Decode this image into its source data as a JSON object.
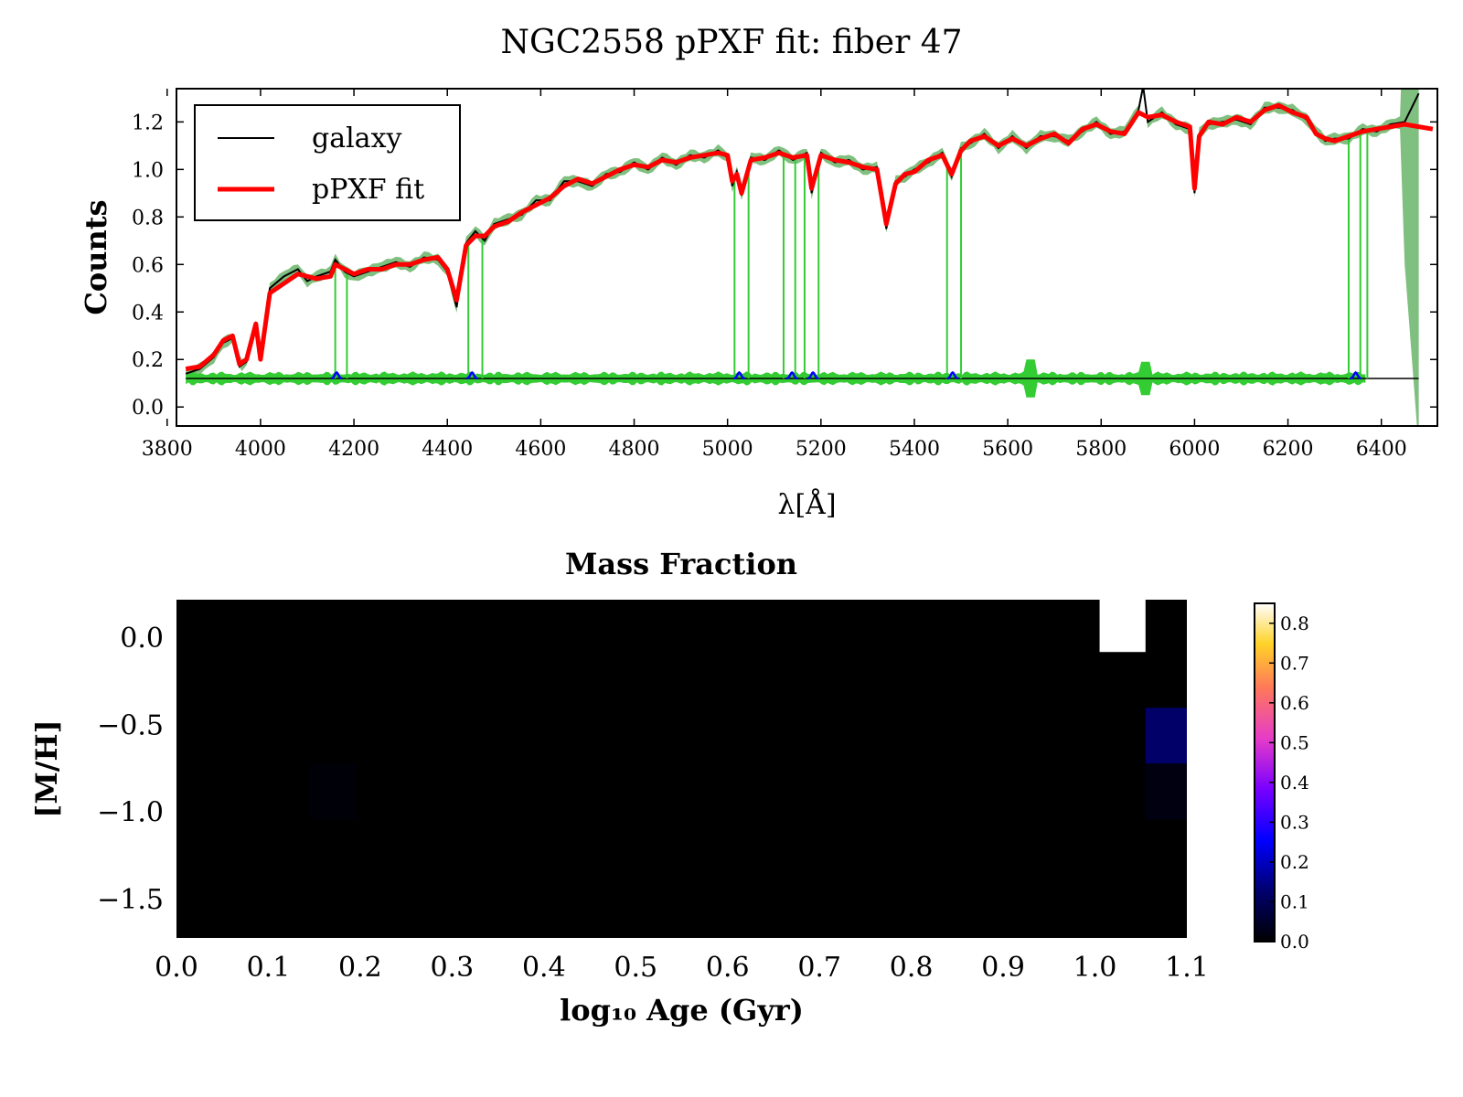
{
  "figure": {
    "title": "NGC2558 pPXF fit: fiber 47"
  },
  "chart_data": [
    {
      "type": "line",
      "xlabel": "λ[Å]",
      "ylabel": "Counts",
      "xlim": [
        3820,
        6520
      ],
      "ylim": [
        -0.08,
        1.34
      ],
      "xticks": [
        3800,
        4000,
        4200,
        4400,
        4600,
        4800,
        5000,
        5200,
        5400,
        5600,
        5800,
        6000,
        6200,
        6400
      ],
      "yticks": [
        0.0,
        0.2,
        0.4,
        0.6,
        0.8,
        1.0,
        1.2
      ],
      "ytick_labels": [
        "0.0",
        "0.2",
        "0.4",
        "0.6",
        "0.8",
        "1.0",
        "1.2"
      ],
      "legend": {
        "location": "top-left",
        "entries": [
          "galaxy",
          "pPXF fit"
        ]
      },
      "colors": {
        "galaxy": "#000000",
        "fit": "#ff0000",
        "residual": "#33cc33",
        "residual_band": "#008000",
        "gas": "#0000ff"
      },
      "series": [
        {
          "name": "pPXF fit",
          "x": [
            3840,
            3870,
            3900,
            3920,
            3940,
            3955,
            3970,
            3990,
            4000,
            4020,
            4050,
            4080,
            4100,
            4120,
            4150,
            4160,
            4180,
            4200,
            4230,
            4260,
            4290,
            4320,
            4350,
            4380,
            4400,
            4420,
            4440,
            4460,
            4480,
            4500,
            4530,
            4560,
            4590,
            4620,
            4650,
            4680,
            4710,
            4740,
            4770,
            4800,
            4830,
            4860,
            4890,
            4920,
            4950,
            4980,
            5000,
            5010,
            5020,
            5030,
            5050,
            5080,
            5110,
            5140,
            5170,
            5180,
            5200,
            5230,
            5260,
            5290,
            5320,
            5340,
            5360,
            5380,
            5400,
            5430,
            5460,
            5480,
            5500,
            5520,
            5550,
            5580,
            5610,
            5640,
            5670,
            5700,
            5730,
            5760,
            5790,
            5820,
            5850,
            5880,
            5900,
            5930,
            5960,
            5990,
            6000,
            6010,
            6030,
            6060,
            6090,
            6120,
            6150,
            6180,
            6210,
            6240,
            6260,
            6280,
            6300,
            6330,
            6360,
            6390,
            6420,
            6450,
            6480,
            6510
          ],
          "y": [
            0.16,
            0.17,
            0.22,
            0.28,
            0.3,
            0.18,
            0.2,
            0.35,
            0.2,
            0.48,
            0.52,
            0.56,
            0.55,
            0.54,
            0.55,
            0.6,
            0.58,
            0.56,
            0.58,
            0.58,
            0.6,
            0.6,
            0.62,
            0.63,
            0.58,
            0.45,
            0.68,
            0.72,
            0.72,
            0.76,
            0.78,
            0.82,
            0.85,
            0.88,
            0.93,
            0.96,
            0.94,
            0.97,
            1.0,
            1.02,
            1.01,
            1.04,
            1.03,
            1.05,
            1.06,
            1.07,
            1.06,
            0.95,
            0.98,
            0.9,
            1.04,
            1.05,
            1.07,
            1.05,
            1.06,
            0.92,
            1.06,
            1.04,
            1.03,
            1.01,
            1.0,
            0.77,
            0.94,
            0.98,
            0.99,
            1.04,
            1.06,
            0.98,
            1.08,
            1.12,
            1.14,
            1.1,
            1.13,
            1.1,
            1.13,
            1.15,
            1.11,
            1.17,
            1.19,
            1.16,
            1.15,
            1.24,
            1.22,
            1.23,
            1.2,
            1.18,
            0.92,
            1.14,
            1.2,
            1.19,
            1.22,
            1.2,
            1.25,
            1.27,
            1.24,
            1.22,
            1.15,
            1.13,
            1.12,
            1.14,
            1.16,
            1.17,
            1.18,
            1.19,
            1.18,
            1.17
          ]
        },
        {
          "name": "galaxy",
          "x": [
            3840,
            3870,
            3900,
            3920,
            3940,
            3955,
            3970,
            3990,
            4000,
            4020,
            4050,
            4080,
            4100,
            4120,
            4150,
            4160,
            4180,
            4200,
            4230,
            4260,
            4290,
            4320,
            4350,
            4380,
            4400,
            4420,
            4440,
            4460,
            4480,
            4500,
            4530,
            4560,
            4590,
            4620,
            4650,
            4680,
            4710,
            4740,
            4770,
            4800,
            4830,
            4860,
            4890,
            4920,
            4950,
            4980,
            5000,
            5010,
            5020,
            5030,
            5050,
            5080,
            5110,
            5140,
            5170,
            5180,
            5200,
            5230,
            5260,
            5290,
            5320,
            5340,
            5360,
            5380,
            5400,
            5430,
            5460,
            5480,
            5500,
            5520,
            5550,
            5580,
            5610,
            5640,
            5670,
            5700,
            5730,
            5760,
            5790,
            5820,
            5850,
            5880,
            5890,
            5900,
            5930,
            5960,
            5990,
            6000,
            6010,
            6030,
            6060,
            6090,
            6120,
            6150,
            6180,
            6210,
            6240,
            6260,
            6280,
            6300,
            6330,
            6360,
            6390,
            6420,
            6450,
            6480
          ],
          "y": [
            0.14,
            0.16,
            0.21,
            0.27,
            0.29,
            0.17,
            0.19,
            0.34,
            0.21,
            0.5,
            0.55,
            0.58,
            0.53,
            0.55,
            0.57,
            0.62,
            0.57,
            0.55,
            0.57,
            0.59,
            0.61,
            0.59,
            0.63,
            0.62,
            0.57,
            0.42,
            0.69,
            0.74,
            0.7,
            0.77,
            0.79,
            0.81,
            0.87,
            0.87,
            0.95,
            0.95,
            0.93,
            0.98,
            0.99,
            1.03,
            1.0,
            1.05,
            1.02,
            1.06,
            1.05,
            1.08,
            1.05,
            0.93,
            0.99,
            0.89,
            1.05,
            1.04,
            1.08,
            1.04,
            1.07,
            0.9,
            1.07,
            1.03,
            1.04,
            1.0,
            1.01,
            0.75,
            0.95,
            0.97,
            1.0,
            1.03,
            1.07,
            0.97,
            1.09,
            1.11,
            1.15,
            1.09,
            1.14,
            1.09,
            1.14,
            1.14,
            1.12,
            1.16,
            1.2,
            1.15,
            1.16,
            1.25,
            1.35,
            1.2,
            1.24,
            1.19,
            1.17,
            0.9,
            1.15,
            1.19,
            1.2,
            1.21,
            1.19,
            1.26,
            1.26,
            1.25,
            1.21,
            1.16,
            1.12,
            1.13,
            1.13,
            1.17,
            1.16,
            1.19,
            1.2,
            1.32
          ]
        }
      ],
      "residual_offset": 0.12,
      "residual_x_range": [
        3840,
        6370
      ],
      "masked_lines_x": [
        4160,
        4185,
        4445,
        4475,
        5015,
        5045,
        5120,
        5145,
        5165,
        5195,
        5470,
        5500,
        6330,
        6355,
        6370
      ],
      "gas_emission_x": [
        4163,
        4453,
        5025,
        5138,
        5183,
        5482,
        6345
      ]
    },
    {
      "type": "heatmap",
      "title": "Mass Fraction",
      "xlabel": "log₁₀ Age (Gyr)",
      "ylabel": "[M/H]",
      "xlim": [
        0.0,
        1.1
      ],
      "xticks": [
        "0.0",
        "0.1",
        "0.2",
        "0.3",
        "0.4",
        "0.5",
        "0.6",
        "0.7",
        "0.8",
        "0.9",
        "1.0",
        "1.1"
      ],
      "ylim": [
        -1.72,
        0.22
      ],
      "yticks": [
        "0.0",
        "−0.5",
        "−1.0",
        "−1.5"
      ],
      "colorbar": {
        "min": 0.0,
        "max": 0.85,
        "ticks": [
          "0.0",
          "0.1",
          "0.2",
          "0.3",
          "0.4",
          "0.5",
          "0.6",
          "0.7",
          "0.8"
        ]
      },
      "cells": [
        {
          "age_range": [
            1.005,
            1.055
          ],
          "mh_range": [
            -0.08,
            0.22
          ],
          "value": 0.86
        },
        {
          "age_range": [
            1.055,
            1.1
          ],
          "mh_range": [
            -0.72,
            -0.4
          ],
          "value": 0.12
        },
        {
          "age_range": [
            1.055,
            1.1
          ],
          "mh_range": [
            -1.04,
            -0.72
          ],
          "value": 0.02
        },
        {
          "age_range": [
            0.145,
            0.195
          ],
          "mh_range": [
            -1.04,
            -0.72
          ],
          "value": 0.01
        }
      ]
    }
  ]
}
